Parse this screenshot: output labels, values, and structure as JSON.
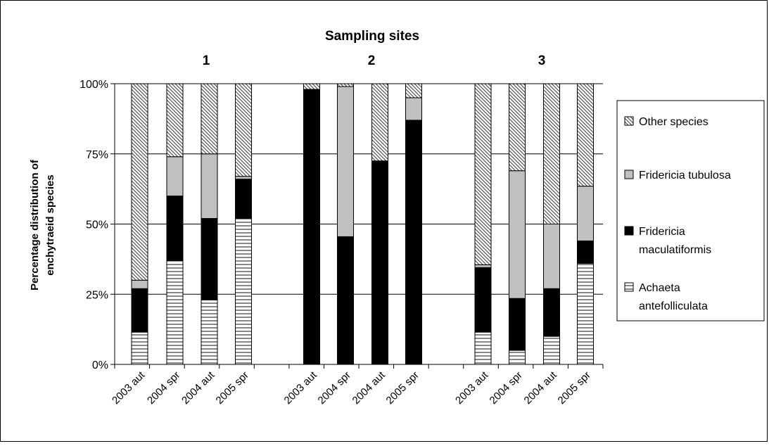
{
  "chart_data": {
    "type": "bar",
    "stacked": true,
    "title": "Sampling sites",
    "ylabel": "Percentage distribution of enchytraeid species",
    "ylabel_lines": [
      "Percentage distribution of",
      "enchytraeid species"
    ],
    "ylim": [
      0,
      100
    ],
    "yticks": [
      "0%",
      "25%",
      "50%",
      "75%",
      "100%"
    ],
    "grid": true,
    "legend_position": "right",
    "groups": [
      {
        "label": "1",
        "categories": [
          "2003 aut",
          "2004 spr",
          "2004 aut",
          "2005 spr"
        ]
      },
      {
        "label": "2",
        "categories": [
          "2003 aut",
          "2004 spr",
          "2004 aut",
          "2005 spr"
        ]
      },
      {
        "label": "3",
        "categories": [
          "2003 aut",
          "2004 spr",
          "2004 aut",
          "2005 spr"
        ]
      }
    ],
    "series": [
      {
        "name": "Achaeta antefolliculata",
        "legend_lines": [
          "Achaeta",
          "antefolliculata"
        ],
        "pattern": "hlines",
        "values": [
          11.5,
          37,
          23,
          52,
          0,
          0,
          0,
          0,
          11.5,
          5,
          10,
          36
        ]
      },
      {
        "name": "Fridericia maculatiformis",
        "legend_lines": [
          "Fridericia",
          "maculatiformis"
        ],
        "pattern": "solid",
        "values": [
          15.5,
          23,
          29,
          14,
          98,
          45.5,
          72.5,
          87,
          23,
          18.5,
          17,
          8
        ]
      },
      {
        "name": "Fridericia tubulosa",
        "legend_lines": [
          "Fridericia tubulosa"
        ],
        "pattern": "gray",
        "values": [
          3,
          14,
          23,
          1,
          0,
          53.5,
          0,
          8,
          1,
          45.5,
          23,
          19.5
        ]
      },
      {
        "name": "Other species",
        "legend_lines": [
          "Other species"
        ],
        "pattern": "diag",
        "values": [
          70,
          26,
          25,
          33,
          2,
          1,
          27.5,
          5,
          64.5,
          31,
          50,
          36.5
        ]
      }
    ]
  },
  "colors": {
    "solid": "#000000",
    "gray": "#c0c0c0",
    "background": "#ffffff"
  }
}
